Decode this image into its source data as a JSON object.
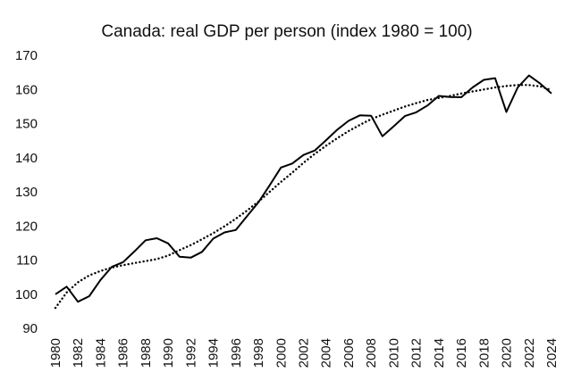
{
  "chart_data": {
    "type": "line",
    "title": "Canada: real GDP per person (index 1980 = 100)",
    "xlabel": "",
    "ylabel": "",
    "ylim": [
      90,
      170
    ],
    "y_ticks": [
      90,
      100,
      110,
      120,
      130,
      140,
      150,
      160,
      170
    ],
    "x_tick_labels": [
      "1980",
      "1982",
      "1984",
      "1986",
      "1988",
      "1990",
      "1992",
      "1994",
      "1996",
      "1998",
      "2000",
      "2002",
      "2004",
      "2006",
      "2008",
      "2010",
      "2012",
      "2014",
      "2016",
      "2018",
      "2020",
      "2022",
      "2024"
    ],
    "grid": false,
    "legend": "none",
    "series": [
      {
        "style": "solid",
        "x": [
          1980,
          1981,
          1982,
          1983,
          1984,
          1985,
          1986,
          1987,
          1988,
          1989,
          1990,
          1991,
          1992,
          1993,
          1994,
          1995,
          1996,
          1997,
          1998,
          1999,
          2000,
          2001,
          2002,
          2003,
          2004,
          2005,
          2006,
          2007,
          2008,
          2009,
          2010,
          2011,
          2012,
          2013,
          2014,
          2015,
          2016,
          2017,
          2018,
          2019,
          2020,
          2021,
          2022,
          2023,
          2024
        ],
        "values": [
          100,
          102.2,
          97.8,
          99.4,
          104.2,
          108,
          109.4,
          112.5,
          115.8,
          116.4,
          114.9,
          111,
          110.7,
          112.4,
          116.3,
          118.1,
          118.8,
          122.9,
          126.9,
          131.9,
          137.1,
          138.3,
          140.8,
          142.1,
          145.1,
          148.2,
          150.8,
          152.4,
          152.3,
          146.3,
          149.2,
          152.2,
          153.3,
          155.3,
          158.1,
          157.8,
          157.7,
          160.6,
          162.8,
          163.3,
          153.4,
          160.6,
          164.1,
          161.7,
          158.8
        ]
      },
      {
        "style": "dotted",
        "x": [
          1980,
          1981,
          1982,
          1983,
          1984,
          1985,
          1986,
          1987,
          1988,
          1989,
          1990,
          1991,
          1992,
          1993,
          1994,
          1995,
          1996,
          1997,
          1998,
          1999,
          2000,
          2001,
          2002,
          2003,
          2004,
          2005,
          2006,
          2007,
          2008,
          2009,
          2010,
          2011,
          2012,
          2013,
          2014,
          2015,
          2016,
          2017,
          2018,
          2019,
          2020,
          2021,
          2022,
          2023,
          2024
        ],
        "values": [
          96,
          100.5,
          103.5,
          105.5,
          106.8,
          107.8,
          108.5,
          109.1,
          109.7,
          110.3,
          111.3,
          112.9,
          114.4,
          116.1,
          117.9,
          119.9,
          122.1,
          124.5,
          127.1,
          130,
          132.9,
          135.6,
          138.5,
          141.1,
          143.5,
          145.7,
          147.8,
          149.6,
          151.3,
          152.6,
          153.8,
          155,
          156,
          156.9,
          157.5,
          158.1,
          158.8,
          159.4,
          160,
          160.6,
          161,
          161.3,
          161.3,
          160.9,
          159.8
        ]
      }
    ],
    "colors": {
      "line": "#000000",
      "text": "#111111"
    }
  }
}
